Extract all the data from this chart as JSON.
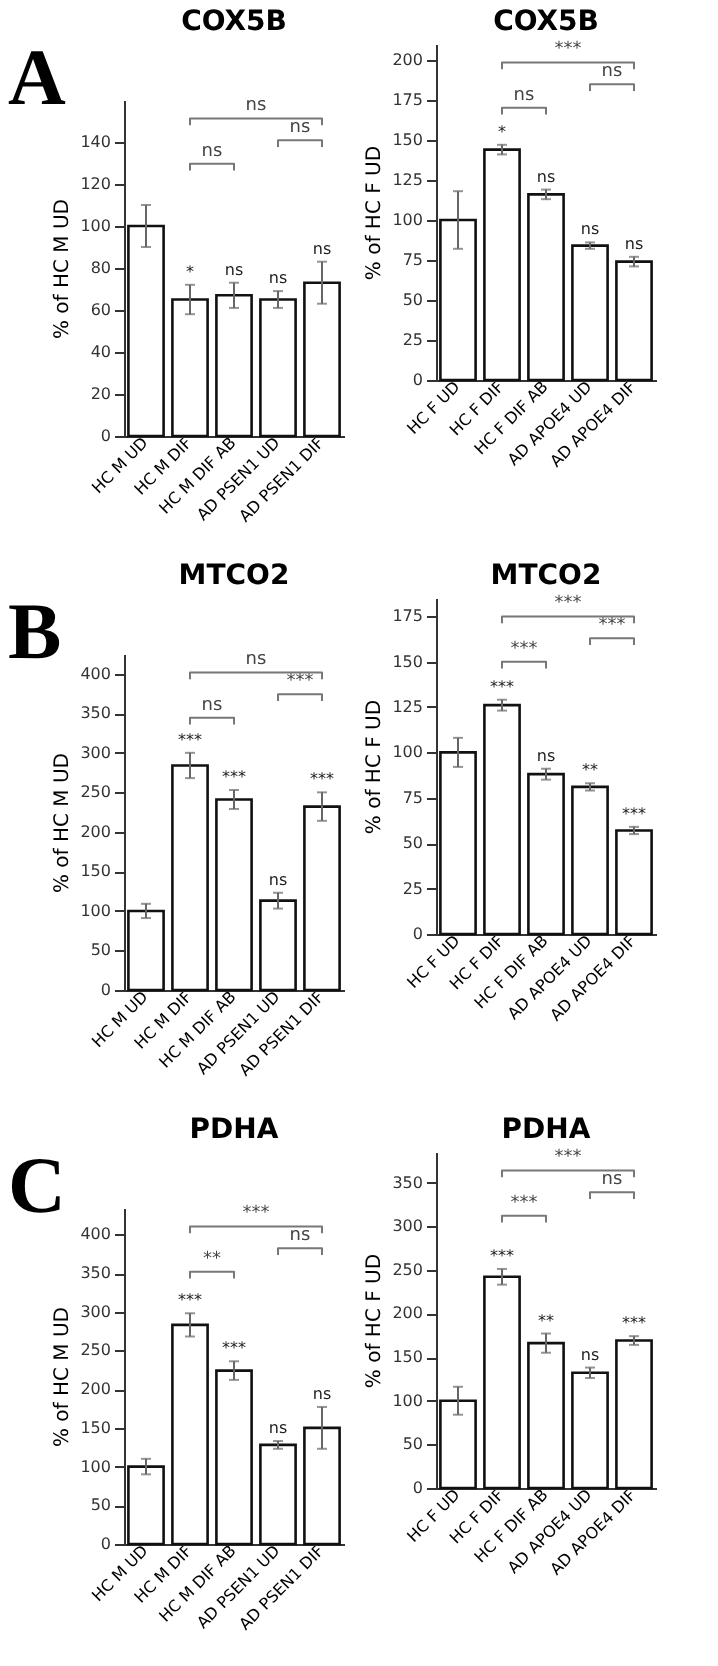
{
  "chart_data": [
    {
      "type": "bar",
      "title": "COX5B",
      "ylabel": "% of HC M UD",
      "categories": [
        "HC M UD",
        "HC M DIF",
        "HC M DIF AB",
        "AD PSEN1 UD",
        "AD PSEN1 DIF"
      ],
      "values": [
        100,
        65,
        67,
        65,
        73
      ],
      "errors": [
        10,
        7,
        6,
        4,
        10
      ],
      "color": "#ffffff",
      "ylim": [
        0,
        160
      ],
      "yticks": [
        0,
        20,
        40,
        60,
        80,
        100,
        120,
        140
      ],
      "annotations": [
        "A",
        "ns",
        "ns",
        "ns",
        {
          "text": "*",
          "x": "HC M DIF",
          "y": 72
        },
        {
          "text": "ns",
          "x": "HC M DIF AB",
          "y": 73
        },
        {
          "text": "ns",
          "x": "AD PSEN1 UD",
          "y": 69
        },
        {
          "text": "ns",
          "x": "AD PSEN1 DIF",
          "y": 83
        }
      ]
    },
    {
      "type": "bar",
      "title": "COX5B",
      "ylabel": "% of HC F UD",
      "categories": [
        "HC F UD",
        "HC F DIF",
        "HC F DIF AB",
        "AD APOE4 UD",
        "AD APOE4 DIF"
      ],
      "values": [
        100,
        144,
        116,
        84,
        74
      ],
      "errors": [
        18,
        3,
        3,
        2,
        3
      ],
      "color": "#ffffff",
      "ylim": [
        0,
        210
      ],
      "yticks": [
        0,
        25,
        50,
        75,
        100,
        125,
        150,
        175,
        200
      ],
      "annotations": [
        "ns",
        "ns",
        "***",
        {
          "text": "*",
          "x": "HC F DIF",
          "y": 147
        },
        {
          "text": "ns",
          "x": "HC F DIF AB",
          "y": 119
        },
        {
          "text": "ns",
          "x": "AD APOE4 UD",
          "y": 86
        },
        {
          "text": "ns",
          "x": "AD APOE4 DIF",
          "y": 77
        }
      ]
    },
    {
      "type": "bar",
      "title": "MTCO2",
      "ylabel": "% of HC M UD",
      "categories": [
        "HC M UD",
        "HC M DIF",
        "HC M DIF AB",
        "AD PSEN1 UD",
        "AD PSEN1 DIF"
      ],
      "values": [
        100,
        284,
        241,
        113,
        232
      ],
      "errors": [
        9,
        16,
        12,
        10,
        18
      ],
      "color": "#ffffff",
      "ylim": [
        0,
        425
      ],
      "yticks": [
        0,
        50,
        100,
        150,
        200,
        250,
        300,
        350,
        400
      ],
      "annotations": [
        "B",
        "ns",
        "***",
        "ns",
        {
          "text": "***",
          "x": "HC M DIF",
          "y": 300
        },
        {
          "text": "***",
          "x": "HC M DIF AB",
          "y": 253
        },
        {
          "text": "ns",
          "x": "AD PSEN1 UD",
          "y": 123
        },
        {
          "text": "***",
          "x": "AD PSEN1 DIF",
          "y": 250
        }
      ]
    },
    {
      "type": "bar",
      "title": "MTCO2",
      "ylabel": "% of HC F UD",
      "categories": [
        "HC F UD",
        "HC F DIF",
        "HC F DIF AB",
        "AD APOE4 UD",
        "AD APOE4 DIF"
      ],
      "values": [
        100,
        126,
        88,
        81,
        57
      ],
      "errors": [
        8,
        3,
        3,
        2,
        2
      ],
      "color": "#ffffff",
      "ylim": [
        0,
        185
      ],
      "yticks": [
        0,
        25,
        50,
        75,
        100,
        125,
        150,
        175
      ],
      "annotations": [
        "***",
        "***",
        "***",
        {
          "text": "***",
          "x": "HC F DIF",
          "y": 129
        },
        {
          "text": "ns",
          "x": "HC F DIF AB",
          "y": 91
        },
        {
          "text": "**",
          "x": "AD APOE4 UD",
          "y": 83
        },
        {
          "text": "***",
          "x": "AD APOE4 DIF",
          "y": 59
        }
      ]
    },
    {
      "type": "bar",
      "title": "PDHA",
      "ylabel": "% of HC M UD",
      "categories": [
        "HC M UD",
        "HC M DIF",
        "HC M DIF AB",
        "AD PSEN1 UD",
        "AD PSEN1 DIF"
      ],
      "values": [
        100,
        283,
        224,
        128,
        150
      ],
      "errors": [
        10,
        15,
        12,
        5,
        27
      ],
      "color": "#ffffff",
      "ylim": [
        0,
        434
      ],
      "yticks": [
        0,
        50,
        100,
        150,
        200,
        250,
        300,
        350,
        400
      ],
      "annotations": [
        "C",
        "**",
        "ns",
        "***",
        {
          "text": "***",
          "x": "HC M DIF",
          "y": 298
        },
        {
          "text": "***",
          "x": "HC M DIF AB",
          "y": 236
        },
        {
          "text": "ns",
          "x": "AD PSEN1 UD",
          "y": 133
        },
        {
          "text": "ns",
          "x": "AD PSEN1 DIF",
          "y": 177
        }
      ]
    },
    {
      "type": "bar",
      "title": "PDHA",
      "ylabel": "% of HC F UD",
      "categories": [
        "HC F UD",
        "HC F DIF",
        "HC F DIF AB",
        "AD APOE4 UD",
        "AD APOE4 DIF"
      ],
      "values": [
        100,
        242,
        166,
        132,
        169
      ],
      "errors": [
        16,
        9,
        11,
        6,
        5
      ],
      "color": "#ffffff",
      "ylim": [
        0,
        385
      ],
      "yticks": [
        0,
        50,
        100,
        150,
        200,
        250,
        300,
        350
      ],
      "annotations": [
        "***",
        "ns",
        "***",
        {
          "text": "***",
          "x": "HC F DIF",
          "y": 251
        },
        {
          "text": "**",
          "x": "HC F DIF AB",
          "y": 177
        },
        {
          "text": "ns",
          "x": "AD APOE4 UD",
          "y": 138
        },
        {
          "text": "***",
          "x": "AD APOE4 DIF",
          "y": 174
        }
      ]
    }
  ]
}
